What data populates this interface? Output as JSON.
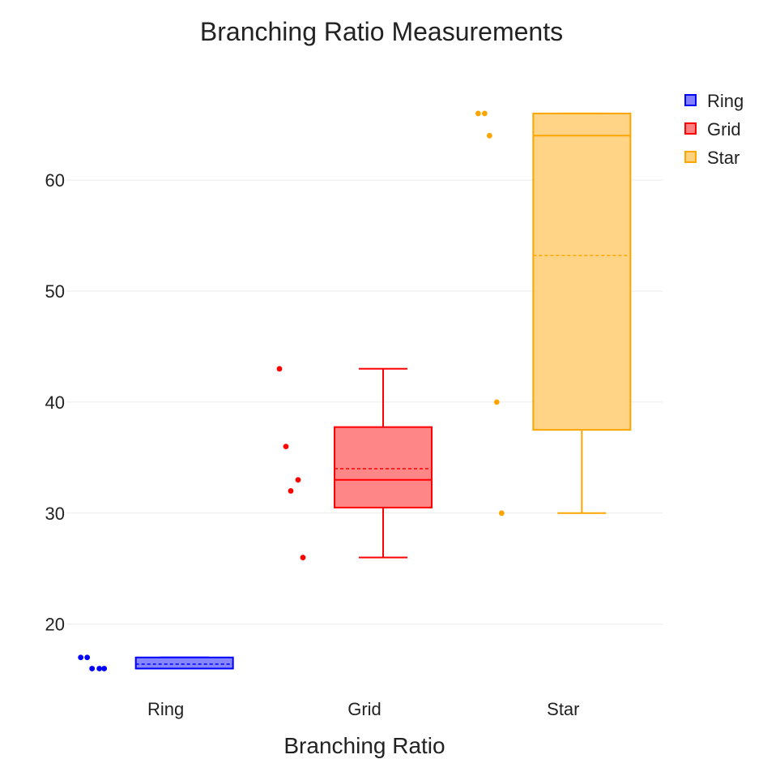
{
  "chart_data": {
    "type": "box",
    "title": "Branching Ratio Measurements",
    "xlabel": "Branching Ratio",
    "ylabel": "",
    "ylim": [
      14.5,
      69.5
    ],
    "yticks": [
      20,
      30,
      40,
      50,
      60
    ],
    "grid": true,
    "legend_position": "top-right",
    "boxpoints": "all",
    "show_mean": true,
    "series": [
      {
        "name": "Ring",
        "category": "Ring",
        "color": "#0000ff",
        "fill": "#8080ff",
        "points": [
          17,
          17,
          16,
          16,
          16
        ],
        "min": 16,
        "q1": 16,
        "median": 16,
        "q3": 17,
        "max": 17,
        "mean": 16.4
      },
      {
        "name": "Grid",
        "category": "Grid",
        "color": "#ff0000",
        "fill": "#ff8080",
        "points": [
          43,
          36,
          32,
          33,
          26
        ],
        "min": 26,
        "q1": 30.5,
        "median": 33,
        "q3": 37.75,
        "max": 43,
        "mean": 34
      },
      {
        "name": "Star",
        "category": "Star",
        "color": "#ffa500",
        "fill": "#ffd280",
        "points": [
          66,
          66,
          64,
          40,
          30
        ],
        "min": 30,
        "q1": 37.5,
        "median": 64,
        "q3": 66,
        "max": 66,
        "mean": 53.2
      }
    ]
  }
}
